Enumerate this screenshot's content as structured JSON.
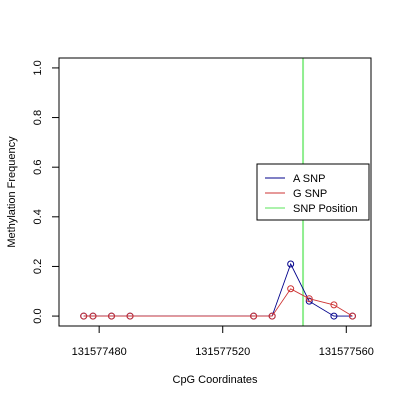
{
  "chart_data": {
    "type": "line",
    "xlabel": "CpG Coordinates",
    "ylabel": "Methylation Frequency",
    "xlim": [
      131577467,
      131577568
    ],
    "ylim": [
      -0.04,
      1.04
    ],
    "x_ticks": [
      131577480,
      131577520,
      131577560
    ],
    "y_ticks": [
      0.0,
      0.2,
      0.4,
      0.6,
      0.8,
      1.0
    ],
    "y_tick_labels": [
      "0.0",
      "0.2",
      "0.4",
      "0.6",
      "0.8",
      "1.0"
    ],
    "grid": false,
    "legend_position": "right",
    "series": [
      {
        "name": "A SNP",
        "color": "#00008B",
        "x": [
          131577475,
          131577478,
          131577484,
          131577490,
          131577530,
          131577536,
          131577542,
          131577548,
          131577556,
          131577562
        ],
        "y": [
          0,
          0,
          0,
          0,
          0,
          0,
          0.21,
          0.06,
          0,
          0
        ]
      },
      {
        "name": "G SNP",
        "color": "#CD3333",
        "x": [
          131577475,
          131577478,
          131577484,
          131577490,
          131577530,
          131577536,
          131577542,
          131577548,
          131577556,
          131577562
        ],
        "y": [
          0,
          0,
          0,
          0,
          0,
          0,
          0.11,
          0.07,
          0.045,
          0
        ]
      }
    ],
    "snp_line": {
      "name": "SNP Position",
      "x": 131577546,
      "color": "#90EE90"
    },
    "legend": [
      "A SNP",
      "G SNP",
      "SNP Position"
    ]
  }
}
